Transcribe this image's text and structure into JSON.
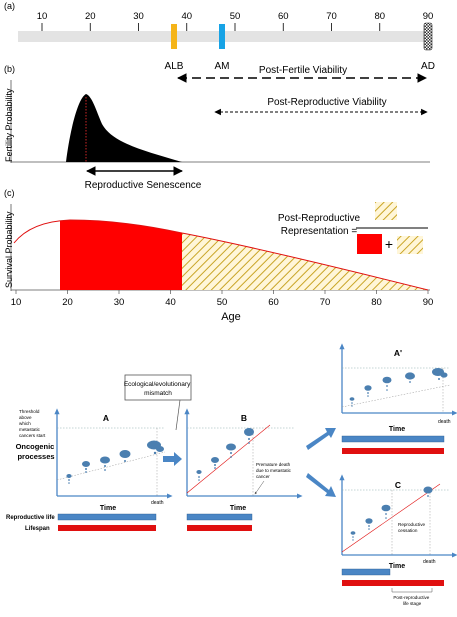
{
  "panel_a": {
    "label": "(a)",
    "ticks": [
      "10",
      "20",
      "30",
      "40",
      "50",
      "60",
      "70",
      "80",
      "90"
    ],
    "markers": {
      "alb": "ALB",
      "am": "AM",
      "ad": "AD"
    },
    "post_fertile_label": "Post-Fertile Viability",
    "colors": {
      "alb": "#f5b418",
      "am": "#17a3e6"
    }
  },
  "panel_b": {
    "label": "(b)",
    "ylabel": "Fertility Probability",
    "post_reproductive_label": "Post-Reproductive Viability",
    "senescence_label": "Reproductive Senescence"
  },
  "panel_c": {
    "label": "(c)",
    "ylabel": "Survival Probability",
    "xlabel": "Age",
    "ticks": [
      "10",
      "20",
      "30",
      "40",
      "50",
      "60",
      "70",
      "80",
      "90"
    ],
    "formula_line1": "Post-Reproductive",
    "formula_line2": "Representation =",
    "plus": "+"
  },
  "bottom": {
    "mismatch_label_1": "Ecological/evolutionary",
    "mismatch_label_2": "mismatch",
    "threshold_lines": [
      "Threshold",
      "above",
      "which",
      "metastatic",
      "cancers start"
    ],
    "oncogenic_1": "Oncogenic",
    "oncogenic_2": "processes",
    "panel_A": "A",
    "panel_B": "B",
    "panel_A2": "A'",
    "panel_C": "C",
    "time": "Time",
    "death": "death",
    "premature_lines": [
      "Premature death",
      "due to metastatic",
      "cancer"
    ],
    "reproductive_life": "Reproductive life",
    "lifespan": "Lifespan",
    "cessation_1": "Reproductive",
    "cessation_2": "cessation",
    "post_stage_1": "Post-reproductive",
    "post_stage_2": "life stage",
    "colors": {
      "reproductive": "#4a86c5",
      "lifespan": "#e01010",
      "blob": "#4b7fb0"
    }
  }
}
